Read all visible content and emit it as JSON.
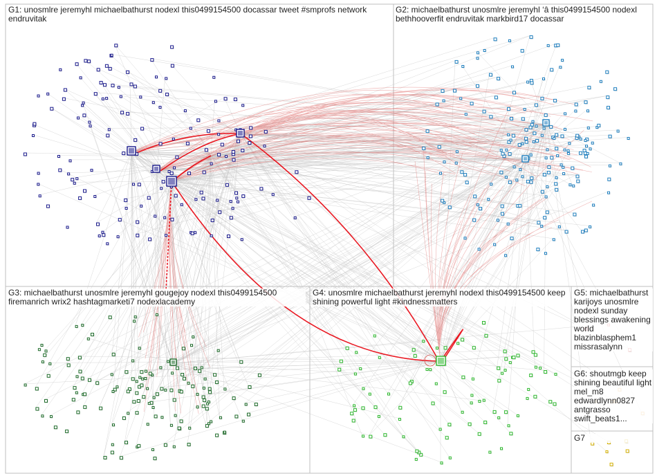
{
  "groups": [
    {
      "id": "G1",
      "text": "G1: unosmlre jeremyhl michaelbathurst nodexl this0499154500 docassar tweet #smprofs network endruvitak",
      "color": "#1a1a8c"
    },
    {
      "id": "G2",
      "text": "G2: michaelbathurst unosmlre jeremyhl ‘â this0499154500 nodexl bethhooverfit endruvitak markbird17 docassar",
      "color": "#1f7fbf"
    },
    {
      "id": "G3",
      "text": "G3: michaelbathurst unosmlre jeremyhl gougejoy nodexl this0499154500 firemanrich wrix2 hashtagmarketi7 nodexlacademy",
      "color": "#1e6b2a"
    },
    {
      "id": "G4",
      "text": "G4: unosmlre michaelbathurst jeremyhl nodexl this0499154500 keep shining powerful light #kindnessmatters",
      "color": "#2db82d"
    },
    {
      "id": "G5",
      "text": "G5: michaelbathurst karijoys unosmlre nodexl sunday blessings awakening world blazinblasphem1 missrasalynn",
      "color": "#d9534f"
    },
    {
      "id": "G6",
      "text": "G6: shoutmgb keep shining beautiful light mel_m8 edwardlynn0827 antgrasso swift_beats1...",
      "color": "#e8a23a"
    },
    {
      "id": "G7",
      "text": "G7",
      "color": "#d4b000"
    }
  ],
  "edge_colors": {
    "normal": "#c7c7c7",
    "highlight": "#d9534f",
    "strong": "#e8000b"
  },
  "panel_border_color": "#bfbfbf"
}
